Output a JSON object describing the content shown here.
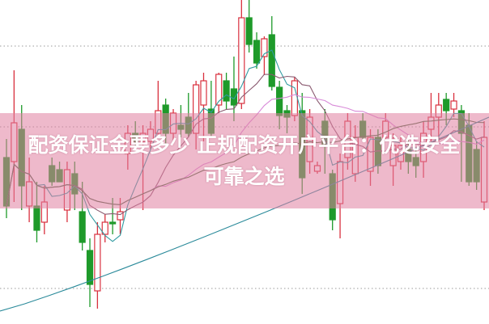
{
  "overlay": {
    "title": "配资保证金要多少 正规配资开户平台：优选安全可靠之选",
    "band_color": "#e080a0"
  },
  "chart_data": {
    "type": "candlestick",
    "title": "",
    "xlabel": "",
    "ylabel": "",
    "ylim": [
      0,
      40
    ],
    "grid": "dotted horizontal lines",
    "colors": {
      "up": "#d9303e",
      "down": "#1e9a2a",
      "ma": [
        "#2f9aa0",
        "#8a5a70",
        "#d88ad8",
        "#4a6a40",
        "#2a8a9a"
      ]
    },
    "moving_averages": [
      5,
      10,
      20,
      40
    ],
    "candles": [
      [
        20.5,
        14.5,
        22.8,
        13
      ],
      [
        20,
        24.8,
        31.3,
        15
      ],
      [
        24,
        17,
        27,
        14
      ],
      [
        14.5,
        17.5,
        20.5,
        12.5
      ],
      [
        14.5,
        11.5,
        17.5,
        10
      ],
      [
        12.5,
        15,
        17,
        11
      ],
      [
        19.5,
        17.5,
        20.5,
        17
      ],
      [
        19,
        17.5,
        20,
        17.5
      ],
      [
        14,
        19,
        20,
        12.5
      ],
      [
        18.5,
        16,
        20,
        14
      ],
      [
        13.8,
        10,
        17.5,
        9
      ],
      [
        9,
        4.8,
        10.5,
        2
      ],
      [
        4,
        11,
        12.5,
        1.8
      ],
      [
        11,
        12.5,
        13.5,
        10
      ],
      [
        12.5,
        12.3,
        15.5,
        11
      ],
      [
        12.8,
        13.8,
        15.5,
        11
      ],
      [
        21,
        23.5,
        24.5,
        19
      ],
      [
        23.5,
        22.5,
        25,
        22
      ],
      [
        22.5,
        23.5,
        24.5,
        14
      ],
      [
        22.5,
        24,
        25,
        21.5
      ],
      [
        23.5,
        26.3,
        30,
        23
      ],
      [
        27,
        23.5,
        27.8,
        22.2
      ],
      [
        23.5,
        26,
        26.5,
        22.5
      ],
      [
        24.5,
        24,
        27,
        23
      ],
      [
        25.5,
        23.5,
        28.5,
        23
      ],
      [
        23.5,
        29.5,
        30,
        21.5
      ],
      [
        27,
        30,
        31,
        22.5
      ],
      [
        26.5,
        23.5,
        30,
        23
      ],
      [
        27,
        30.8,
        31,
        26
      ],
      [
        30,
        27.5,
        31,
        26.5
      ],
      [
        29,
        27,
        33,
        25
      ],
      [
        27.2,
        37.8,
        40,
        26.5
      ],
      [
        37.8,
        34.5,
        40,
        33.5
      ],
      [
        35,
        32.2,
        36,
        31.5
      ],
      [
        33,
        35.2,
        35.5,
        30.7
      ],
      [
        35.7,
        29.3,
        38,
        28.8
      ],
      [
        29.2,
        25.7,
        30,
        24
      ],
      [
        26.3,
        25.5,
        27,
        23.5
      ],
      [
        25.7,
        30,
        30.5,
        25
      ],
      [
        26.3,
        18,
        28.5,
        16
      ],
      [
        20,
        25.5,
        26.5,
        18.5
      ],
      [
        18.8,
        19.5,
        20,
        18.5
      ],
      [
        25,
        22,
        26.5,
        18.5
      ],
      [
        18.5,
        12.8,
        19,
        11.5
      ],
      [
        14.8,
        20,
        21,
        10.5
      ],
      [
        20.5,
        25,
        26,
        19
      ],
      [
        18.5,
        23,
        24.5,
        17.5
      ],
      [
        25,
        23,
        26,
        22.5
      ],
      [
        18.8,
        23,
        24,
        17
      ],
      [
        23,
        19.5,
        24,
        18.5
      ],
      [
        23,
        25,
        26,
        22.5
      ],
      [
        19.5,
        22,
        23.5,
        17
      ],
      [
        20,
        22,
        23,
        19
      ],
      [
        21.5,
        20,
        23,
        18.5
      ],
      [
        20.5,
        19.5,
        21.5,
        18
      ],
      [
        20,
        23.5,
        25,
        18
      ],
      [
        24,
        25.5,
        28.5,
        22.5
      ],
      [
        25.5,
        27,
        28.5,
        22.5
      ],
      [
        27.7,
        26.3,
        28.5,
        24.5
      ],
      [
        26.5,
        27.5,
        28.5,
        25.5
      ],
      [
        26.3,
        23.5,
        27,
        17.5
      ],
      [
        24.5,
        17.5,
        26,
        17
      ],
      [
        21.5,
        17.5,
        22.5,
        16.5
      ],
      [
        15,
        23,
        25,
        14
      ]
    ]
  }
}
